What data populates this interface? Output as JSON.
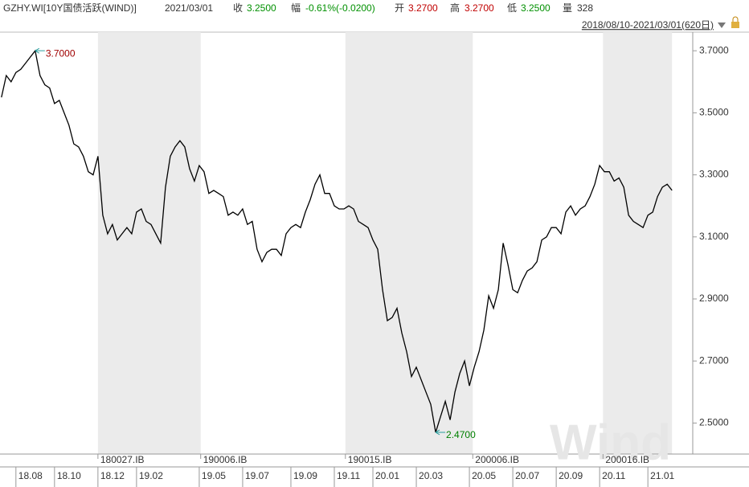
{
  "header": {
    "symbol": "GZHY.WI[10Y国债活跃(WIND)]",
    "date": "2021/03/01",
    "close_label": "收",
    "close": "3.2500",
    "change_label": "幅",
    "change": "-0.61%(-0.0200)",
    "open_label": "开",
    "open": "3.2700",
    "high_label": "高",
    "high": "3.2700",
    "low_label": "低",
    "low": "3.2500",
    "volume_label": "量",
    "volume": "328",
    "range": "2018/08/10-2021/03/01(620日)",
    "watermark": "Wind"
  },
  "chart_data": {
    "type": "line",
    "color": "#000000",
    "values": [
      3.55,
      3.62,
      3.6,
      3.63,
      3.64,
      3.66,
      3.68,
      3.7,
      3.62,
      3.59,
      3.58,
      3.53,
      3.54,
      3.5,
      3.46,
      3.4,
      3.39,
      3.36,
      3.31,
      3.3,
      3.36,
      3.17,
      3.11,
      3.14,
      3.09,
      3.11,
      3.13,
      3.11,
      3.18,
      3.19,
      3.15,
      3.14,
      3.11,
      3.08,
      3.26,
      3.36,
      3.39,
      3.41,
      3.39,
      3.32,
      3.28,
      3.33,
      3.31,
      3.24,
      3.25,
      3.24,
      3.23,
      3.17,
      3.18,
      3.17,
      3.19,
      3.14,
      3.15,
      3.06,
      3.02,
      3.05,
      3.06,
      3.06,
      3.04,
      3.11,
      3.13,
      3.14,
      3.13,
      3.18,
      3.22,
      3.27,
      3.3,
      3.24,
      3.24,
      3.2,
      3.19,
      3.19,
      3.2,
      3.19,
      3.15,
      3.14,
      3.13,
      3.09,
      3.06,
      2.93,
      2.83,
      2.84,
      2.87,
      2.79,
      2.73,
      2.65,
      2.68,
      2.64,
      2.6,
      2.56,
      2.47,
      2.52,
      2.57,
      2.51,
      2.6,
      2.66,
      2.7,
      2.62,
      2.68,
      2.73,
      2.8,
      2.91,
      2.87,
      2.93,
      3.08,
      3.01,
      2.93,
      2.92,
      2.96,
      2.99,
      3.0,
      3.02,
      3.09,
      3.1,
      3.13,
      3.13,
      3.11,
      3.18,
      3.2,
      3.17,
      3.19,
      3.2,
      3.23,
      3.27,
      3.33,
      3.31,
      3.31,
      3.28,
      3.29,
      3.26,
      3.17,
      3.15,
      3.14,
      3.13,
      3.17,
      3.18,
      3.23,
      3.26,
      3.27,
      3.25
    ],
    "xlim": [
      -0.3,
      143.3
    ],
    "ylim": [
      2.4,
      3.76
    ],
    "yticks": [
      {
        "value": 2.5,
        "label": "2.5000"
      },
      {
        "value": 2.7,
        "label": "2.7000"
      },
      {
        "value": 2.9,
        "label": "2.9000"
      },
      {
        "value": 3.1,
        "label": "3.1000"
      },
      {
        "value": 3.3,
        "label": "3.3000"
      },
      {
        "value": 3.5,
        "label": "3.5000"
      },
      {
        "value": 3.7,
        "label": "3.7000"
      }
    ],
    "xticks": [
      {
        "value": 3,
        "label": "18.08"
      },
      {
        "value": 11,
        "label": "18.10"
      },
      {
        "value": 20,
        "label": "18.12"
      },
      {
        "value": 28,
        "label": "19.02"
      },
      {
        "value": 41,
        "label": "19.05"
      },
      {
        "value": 50,
        "label": "19.07"
      },
      {
        "value": 60,
        "label": "19.09"
      },
      {
        "value": 69,
        "label": "19.11"
      },
      {
        "value": 77,
        "label": "20.01"
      },
      {
        "value": 86,
        "label": "20.03"
      },
      {
        "value": 97,
        "label": "20.05"
      },
      {
        "value": 106,
        "label": "20.07"
      },
      {
        "value": 115,
        "label": "20.09"
      },
      {
        "value": 124,
        "label": "20.11"
      },
      {
        "value": 134,
        "label": "21.01"
      }
    ],
    "contracts": [
      {
        "label": "180027.IB",
        "start": 20,
        "end": 41.3
      },
      {
        "label": "190006.IB",
        "start": 41.3,
        "end": 71.3
      },
      {
        "label": "190015.IB",
        "start": 71.3,
        "end": 97.7
      },
      {
        "label": "200006.IB",
        "start": 97.7,
        "end": 124.7
      },
      {
        "label": "200016.IB",
        "start": 124.7,
        "end": 139
      }
    ],
    "annotations": [
      {
        "text": "3.7000",
        "x": 7,
        "y": 3.7,
        "color": "#a00000"
      },
      {
        "text": "2.4700",
        "x": 90,
        "y": 2.47,
        "color": "#008000"
      }
    ]
  }
}
